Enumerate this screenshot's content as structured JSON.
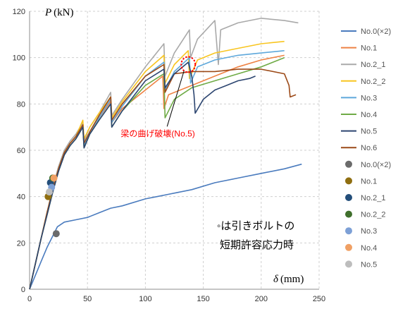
{
  "chart_data": {
    "type": "line",
    "ylabel_var": "P",
    "ylabel_unit": "(kN)",
    "xlabel_var": "δ",
    "xlabel_unit": "(mm)",
    "xlim": [
      0,
      250
    ],
    "ylim": [
      0,
      120
    ],
    "x_ticks": [
      0,
      50,
      100,
      150,
      200,
      250
    ],
    "y_ticks": [
      0,
      20,
      40,
      60,
      80,
      100,
      120
    ],
    "grid": "dashed",
    "legend_position": "right",
    "annotation": {
      "text": "梁の曲げ破壊(No.5)",
      "color": "#ff0000",
      "target_x": 137,
      "target_y": 97,
      "label_x": 70,
      "label_y": 66
    },
    "note_lines": [
      "◦は引きボルトの",
      "短期許容応力時"
    ],
    "series": [
      {
        "name": "No.0(×2)",
        "color": "#4a7bbe",
        "x": [
          0,
          5,
          10,
          15,
          20,
          24,
          30,
          40,
          50,
          60,
          70,
          80,
          100,
          110,
          120,
          140,
          160,
          180,
          200,
          220,
          235
        ],
        "y": [
          0,
          6,
          12,
          18,
          23,
          27,
          29,
          30,
          31,
          33,
          35,
          36,
          39,
          40,
          41,
          43,
          46,
          48,
          50,
          52,
          54
        ]
      },
      {
        "name": "No.1",
        "color": "#ee8244",
        "x": [
          0,
          5,
          10,
          15,
          20,
          25,
          30,
          35,
          40,
          46,
          47,
          52,
          60,
          70,
          71,
          80,
          100,
          115,
          116,
          120,
          140,
          160,
          180,
          200,
          220
        ],
        "y": [
          0,
          11,
          22,
          32,
          42,
          51,
          58,
          62,
          65,
          70,
          62,
          68,
          74,
          81,
          72,
          78,
          86,
          92,
          78,
          84,
          88,
          92,
          96,
          99,
          101
        ]
      },
      {
        "name": "No.2_1",
        "color": "#a9a9a9",
        "x": [
          0,
          5,
          10,
          15,
          20,
          25,
          30,
          35,
          40,
          46,
          47,
          52,
          60,
          70,
          71,
          80,
          100,
          116,
          117,
          125,
          138,
          139,
          145,
          160,
          163,
          165,
          180,
          200,
          220,
          232
        ],
        "y": [
          0,
          11,
          22,
          33,
          44,
          53,
          60,
          64,
          67,
          72,
          64,
          70,
          76,
          85,
          75,
          82,
          96,
          106,
          92,
          102,
          112,
          100,
          108,
          116,
          97,
          112,
          115,
          117,
          116,
          115
        ]
      },
      {
        "name": "No.2_2",
        "color": "#f8c520",
        "x": [
          0,
          5,
          10,
          15,
          20,
          25,
          30,
          35,
          40,
          46,
          47,
          52,
          60,
          70,
          71,
          80,
          100,
          116,
          117,
          125,
          137,
          138,
          145,
          160,
          180,
          200,
          220
        ],
        "y": [
          0,
          11,
          22,
          33,
          43,
          52,
          59,
          63,
          66,
          73,
          65,
          70,
          76,
          83,
          74,
          81,
          94,
          101,
          89,
          97,
          103,
          91,
          99,
          102,
          104,
          106,
          107
        ]
      },
      {
        "name": "No.3",
        "color": "#5ea8db",
        "x": [
          0,
          5,
          10,
          15,
          20,
          25,
          30,
          35,
          40,
          46,
          47,
          52,
          60,
          70,
          71,
          80,
          100,
          116,
          117,
          125,
          138,
          139,
          145,
          160,
          180,
          200,
          220
        ],
        "y": [
          0,
          11,
          22,
          32,
          42,
          51,
          58,
          62,
          65,
          70,
          62,
          68,
          74,
          82,
          72,
          79,
          92,
          98,
          86,
          94,
          100,
          89,
          96,
          99,
          101,
          102,
          103
        ]
      },
      {
        "name": "No.4",
        "color": "#6fab46",
        "x": [
          0,
          5,
          10,
          15,
          20,
          25,
          30,
          35,
          40,
          46,
          47,
          52,
          60,
          70,
          71,
          80,
          100,
          116,
          117,
          125,
          140,
          160,
          180,
          200,
          220
        ],
        "y": [
          0,
          11,
          22,
          32,
          42,
          51,
          58,
          62,
          65,
          70,
          61,
          67,
          73,
          80,
          70,
          77,
          88,
          93,
          74,
          82,
          87,
          90,
          93,
          96,
          100
        ]
      },
      {
        "name": "No.5",
        "color": "#2c4570",
        "x": [
          0,
          5,
          10,
          15,
          20,
          25,
          30,
          35,
          40,
          46,
          47,
          52,
          60,
          70,
          71,
          80,
          100,
          116,
          117,
          125,
          137,
          140,
          142,
          143,
          150,
          160,
          170,
          180,
          190,
          195
        ],
        "y": [
          0,
          11,
          22,
          32,
          42,
          51,
          58,
          62,
          65,
          70,
          61,
          67,
          73,
          80,
          70,
          77,
          90,
          95,
          87,
          93,
          98,
          92,
          84,
          76,
          82,
          86,
          88,
          90,
          91,
          92
        ]
      },
      {
        "name": "No.6",
        "color": "#9c4a18",
        "x": [
          0,
          5,
          10,
          15,
          20,
          25,
          30,
          35,
          40,
          46,
          47,
          52,
          60,
          70,
          71,
          80,
          100,
          116,
          117,
          125,
          140,
          160,
          180,
          200,
          220,
          224,
          225,
          230
        ],
        "y": [
          0,
          11,
          22,
          33,
          43,
          52,
          59,
          63,
          66,
          71,
          63,
          68,
          75,
          83,
          73,
          80,
          92,
          97,
          85,
          93,
          94,
          94,
          95,
          95,
          93,
          88,
          83,
          84
        ]
      },
      {
        "name": "No.0(×2)",
        "color": "#6b6b6b",
        "x": [
          23
        ],
        "y": [
          24
        ],
        "marker": true
      },
      {
        "name": "No.1",
        "color": "#8f6e10",
        "x": [
          16
        ],
        "y": [
          40
        ],
        "marker": true
      },
      {
        "name": "No.2_1",
        "color": "#234e7a",
        "x": [
          18
        ],
        "y": [
          46
        ],
        "marker": true
      },
      {
        "name": "No.2_2",
        "color": "#3f6f2c",
        "x": [
          20
        ],
        "y": [
          48
        ],
        "marker": true
      },
      {
        "name": "No.3",
        "color": "#7da0d6",
        "x": [
          19
        ],
        "y": [
          44
        ],
        "marker": true
      },
      {
        "name": "No.4",
        "color": "#f0a064",
        "x": [
          21
        ],
        "y": [
          48
        ],
        "marker": true
      },
      {
        "name": "No.5",
        "color": "#bdbdbd",
        "x": [
          17
        ],
        "y": [
          42
        ],
        "marker": true
      }
    ]
  }
}
